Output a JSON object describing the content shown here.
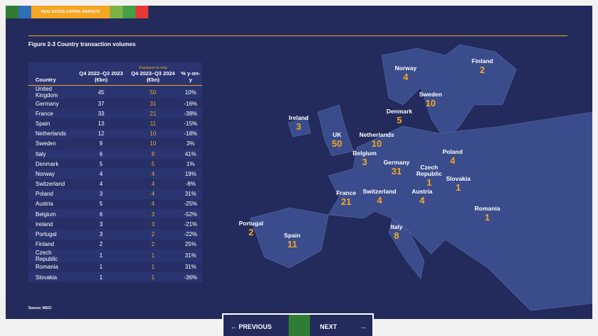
{
  "header": {
    "section": "REAL ESTATE CAPITAL MARKETS"
  },
  "figure": {
    "title": "Figure 2-3 Country transaction volumes",
    "source": "Source: MSCI"
  },
  "table": {
    "headers": {
      "country": "Country",
      "prev": "Q4 2022–Q3 2023 (€bn)",
      "note": "Displayed on map",
      "curr": "Q4 2023–Q3 2024 (€bn)",
      "change": "% y-on-y"
    },
    "rows": [
      [
        "United Kingdom",
        "45",
        "50",
        "10%"
      ],
      [
        "Germany",
        "37",
        "31",
        "-16%"
      ],
      [
        "France",
        "33",
        "21",
        "-38%"
      ],
      [
        "Spain",
        "13",
        "11",
        "-15%"
      ],
      [
        "Netherlands",
        "12",
        "10",
        "-18%"
      ],
      [
        "Sweden",
        "9",
        "10",
        "3%"
      ],
      [
        "Italy",
        "6",
        "8",
        "41%"
      ],
      [
        "Denmark",
        "5",
        "5",
        "1%"
      ],
      [
        "Norway",
        "4",
        "4",
        "19%"
      ],
      [
        "Switzerland",
        "4",
        "4",
        "-8%"
      ],
      [
        "Poland",
        "3",
        "4",
        "31%"
      ],
      [
        "Austria",
        "5",
        "4",
        "-25%"
      ],
      [
        "Belgium",
        "6",
        "3",
        "-52%"
      ],
      [
        "Ireland",
        "3",
        "3",
        "-21%"
      ],
      [
        "Portugal",
        "3",
        "2",
        "-22%"
      ],
      [
        "Finland",
        "2",
        "2",
        "25%"
      ],
      [
        "Czech Republic",
        "1",
        "1",
        "31%"
      ],
      [
        "Romania",
        "1",
        "1",
        "31%"
      ],
      [
        "Slovakia",
        "1",
        "1",
        "-36%"
      ]
    ]
  },
  "map": {
    "labels": [
      {
        "name": "Norway",
        "value": "4"
      },
      {
        "name": "Finland",
        "value": "2"
      },
      {
        "name": "Sweden",
        "value": "10"
      },
      {
        "name": "Denmark",
        "value": "5"
      },
      {
        "name": "Ireland",
        "value": "3"
      },
      {
        "name": "UK",
        "value": "50"
      },
      {
        "name": "Netherlands",
        "value": "10"
      },
      {
        "name": "Belgium",
        "value": "3"
      },
      {
        "name": "Germany",
        "value": "31"
      },
      {
        "name": "Poland",
        "value": "4"
      },
      {
        "name": "Czech Republic",
        "value": "1"
      },
      {
        "name": "Slovakia",
        "value": "1"
      },
      {
        "name": "France",
        "value": "21"
      },
      {
        "name": "Switzerland",
        "value": "4"
      },
      {
        "name": "Austria",
        "value": "4"
      },
      {
        "name": "Romania",
        "value": "1"
      },
      {
        "name": "Portugal",
        "value": "2"
      },
      {
        "name": "Spain",
        "value": "11"
      },
      {
        "name": "Italy",
        "value": "8"
      }
    ]
  },
  "nav": {
    "previous": "PREVIOUS",
    "next": "NEXT"
  }
}
